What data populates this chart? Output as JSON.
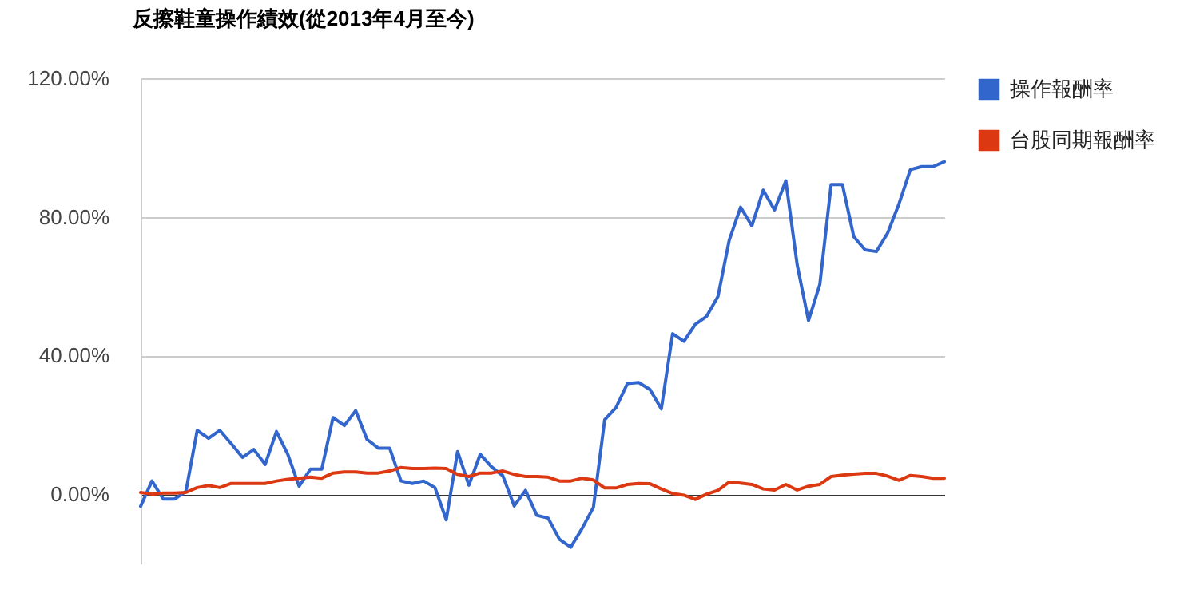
{
  "chart_data": {
    "type": "line",
    "title": "反擦鞋童操作績效(從2013年4月至今)",
    "categories": [
      null,
      null,
      null,
      null,
      null,
      null,
      null,
      null,
      null,
      null,
      null,
      null,
      null,
      null,
      null,
      null,
      null,
      null,
      null,
      null,
      null,
      null,
      null,
      null,
      null,
      null,
      null,
      null,
      null,
      null,
      null,
      null,
      null,
      null,
      null,
      null,
      null,
      null,
      null,
      null,
      null,
      null,
      null,
      null,
      null,
      null,
      null,
      null,
      null,
      null,
      null,
      null,
      null,
      null,
      null,
      null,
      null,
      null,
      null,
      null,
      null,
      null,
      null,
      null,
      null,
      null,
      null,
      null,
      null,
      null,
      null,
      null
    ],
    "series": [
      {
        "name": "操作報酬率",
        "color": "#3366cc",
        "values": [
          -3.5,
          3.8,
          -1.4,
          -1.4,
          0.8,
          18.4,
          16.1,
          18.4,
          14.6,
          10.6,
          12.9,
          8.6,
          18.1,
          11.5,
          2.3,
          7.2,
          7.2,
          22.1,
          19.8,
          24.1,
          15.8,
          13.3,
          13.3,
          3.8,
          3.1,
          3.8,
          1.9,
          -7.4,
          12.3,
          2.6,
          11.5,
          7.9,
          5.3,
          -3.4,
          1.1,
          -6.1,
          -6.9,
          -13.0,
          -15.3,
          -9.9,
          -3.8,
          21.5,
          25.0,
          31.9,
          32.2,
          30.2,
          24.6,
          46.3,
          44.1,
          49.0,
          51.3,
          57.0,
          73.3,
          82.8,
          77.4,
          87.7,
          82.0,
          90.4,
          66.2,
          50.1,
          60.5,
          89.3,
          89.3,
          74.3,
          70.5,
          70.0,
          75.4,
          83.8,
          93.6,
          94.5,
          94.5,
          95.9
        ]
      },
      {
        "name": "台股同期報酬率",
        "color": "#dc3912",
        "values": [
          0.5,
          0,
          0.3,
          0.3,
          0.5,
          1.9,
          2.5,
          1.9,
          3.1,
          3.1,
          3.1,
          3.1,
          3.8,
          4.3,
          4.6,
          4.9,
          4.6,
          6.1,
          6.4,
          6.4,
          6.1,
          6.1,
          6.7,
          7.7,
          7.4,
          7.4,
          7.5,
          7.4,
          5.7,
          5.1,
          6.1,
          6.1,
          6.7,
          5.7,
          5.1,
          5.1,
          4.9,
          3.8,
          3.8,
          4.6,
          4.1,
          1.8,
          1.8,
          2.8,
          3.1,
          3.0,
          1.5,
          0.2,
          -0.3,
          -1.5,
          0,
          1.1,
          3.5,
          3.2,
          2.8,
          1.5,
          1.2,
          2.8,
          1.2,
          2.3,
          2.8,
          5.1,
          5.5,
          5.8,
          6.0,
          6.0,
          5.2,
          4.0,
          5.4,
          5.1,
          4.6,
          4.6
        ]
      }
    ],
    "ylim": [
      -20,
      120
    ],
    "yticks": [
      {
        "value": 0,
        "label": "0.00%"
      },
      {
        "value": 40,
        "label": "40.00%"
      },
      {
        "value": 80,
        "label": "80.00%"
      },
      {
        "value": 120,
        "label": "120.00%"
      }
    ],
    "grid": "y",
    "legend": "right",
    "tick_labels": "y",
    "line_style": "solid"
  }
}
